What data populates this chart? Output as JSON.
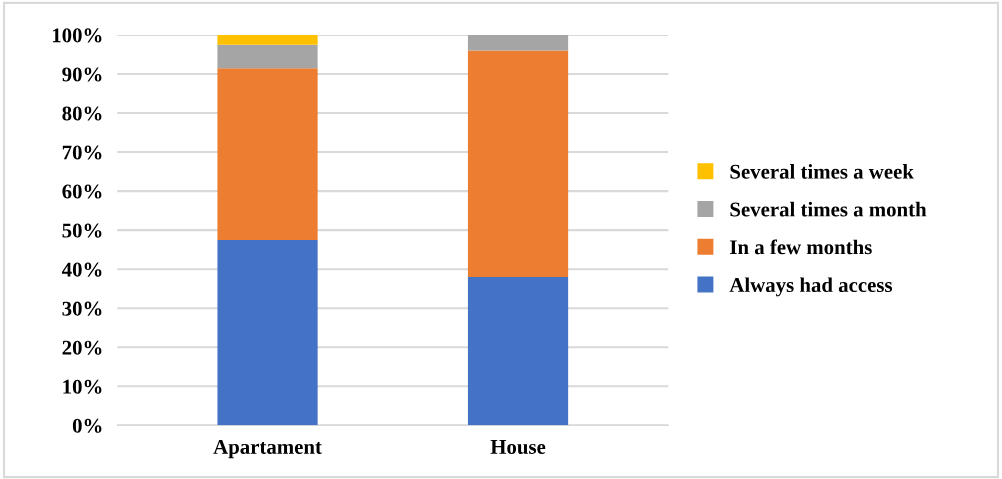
{
  "chart_data": {
    "type": "bar",
    "stacked": true,
    "categories": [
      "Apartament",
      "House"
    ],
    "series": [
      {
        "name": "Always had access",
        "color": "#4472c4",
        "values": [
          47.5,
          38
        ]
      },
      {
        "name": "In a few months",
        "color": "#ed7d31",
        "values": [
          44,
          58
        ]
      },
      {
        "name": "Several times a month",
        "color": "#a5a5a5",
        "values": [
          6,
          4
        ]
      },
      {
        "name": "Several times a week",
        "color": "#ffc000",
        "values": [
          2.5,
          0
        ]
      }
    ],
    "ylim": [
      0,
      100
    ],
    "yticks": [
      {
        "value": 0,
        "label": "0%"
      },
      {
        "value": 10,
        "label": "10%"
      },
      {
        "value": 20,
        "label": "20%"
      },
      {
        "value": 30,
        "label": "30%"
      },
      {
        "value": 40,
        "label": "40%"
      },
      {
        "value": 50,
        "label": "50%"
      },
      {
        "value": 60,
        "label": "60%"
      },
      {
        "value": 70,
        "label": "70%"
      },
      {
        "value": 80,
        "label": "80%"
      },
      {
        "value": 90,
        "label": "90%"
      },
      {
        "value": 100,
        "label": "100%"
      }
    ],
    "grid": "y",
    "legend": "right"
  }
}
